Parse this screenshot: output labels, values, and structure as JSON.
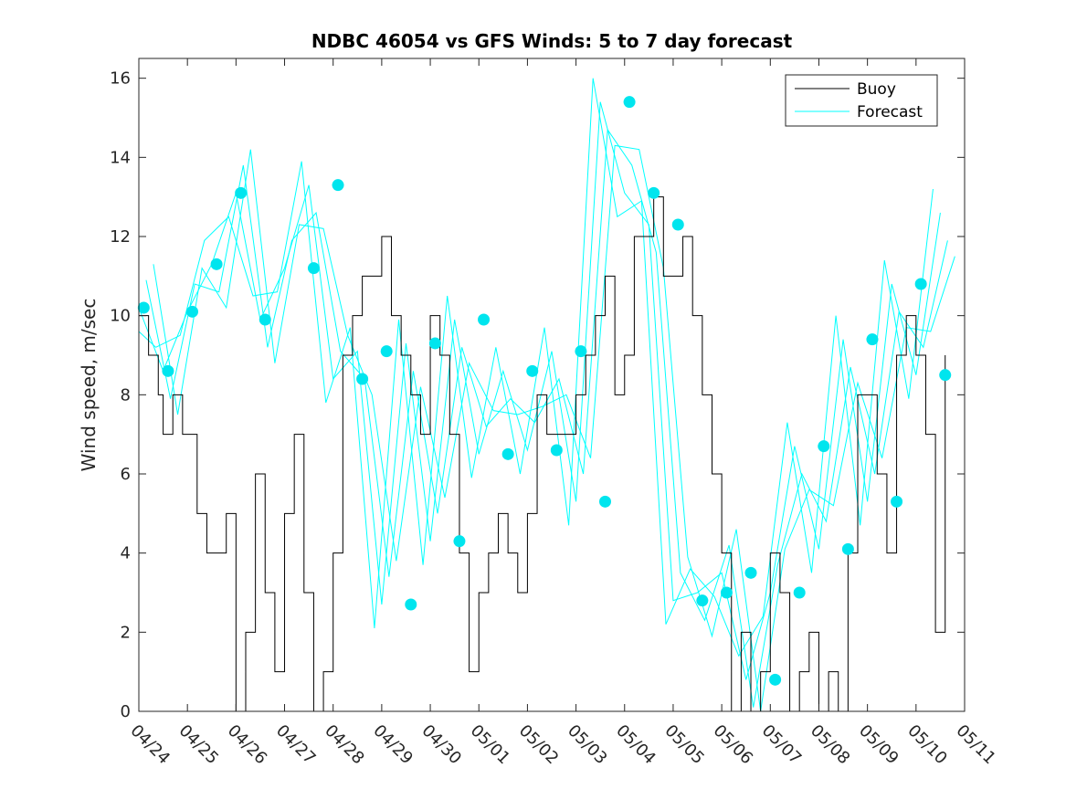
{
  "chart_data": {
    "type": "line",
    "title": "NDBC 46054 vs GFS Winds: 5 to 7 day forecast",
    "xlabel": "",
    "ylabel": "Wind speed, m/sec",
    "ylim": [
      0,
      16.5
    ],
    "yticks": [
      0,
      2,
      4,
      6,
      8,
      10,
      12,
      14,
      16
    ],
    "xlim": [
      "04/24",
      "05/11"
    ],
    "xticks": [
      "04/24",
      "04/25",
      "04/26",
      "04/27",
      "04/28",
      "04/29",
      "04/30",
      "05/01",
      "05/02",
      "05/03",
      "05/04",
      "05/05",
      "05/06",
      "05/07",
      "05/08",
      "05/09",
      "05/10",
      "05/11"
    ],
    "legend": {
      "placement": "top-right",
      "entries": [
        "Buoy",
        "Forecast"
      ]
    },
    "colors": {
      "buoy": "#000000",
      "forecast": "#00ffff",
      "markers": "#00e5ee"
    },
    "series": [
      {
        "name": "Buoy",
        "x_days": [
          0,
          0.1,
          0.2,
          0.3,
          0.4,
          0.5,
          0.6,
          0.7,
          0.8,
          0.9,
          1.0,
          1.2,
          1.4,
          1.6,
          1.8,
          2.0,
          2.2,
          2.4,
          2.6,
          2.8,
          3.0,
          3.2,
          3.4,
          3.6,
          3.8,
          4.0,
          4.2,
          4.4,
          4.5,
          4.6,
          4.8,
          5.0,
          5.2,
          5.4,
          5.6,
          5.8,
          6.0,
          6.2,
          6.4,
          6.6,
          6.8,
          7.0,
          7.2,
          7.4,
          7.6,
          7.8,
          8.0,
          8.2,
          8.4,
          8.6,
          8.8,
          9.0,
          9.2,
          9.4,
          9.6,
          9.8,
          10.0,
          10.2,
          10.4,
          10.6,
          10.8,
          11.0,
          11.2,
          11.4,
          11.6,
          11.8,
          12.0,
          12.2,
          12.4,
          12.6,
          12.8,
          13.0,
          13.2,
          13.4,
          13.6,
          13.8,
          14.0,
          14.2,
          14.4,
          14.6,
          14.8,
          15.0,
          15.2,
          15.4,
          15.6,
          15.8,
          16.0,
          16.2,
          16.4,
          16.6
        ],
        "values": [
          10,
          10,
          9,
          9,
          8,
          7,
          7,
          8,
          8,
          7,
          7,
          5,
          4,
          4,
          5,
          0,
          2,
          6,
          3,
          1,
          5,
          7,
          3,
          0,
          1,
          4,
          9,
          10,
          10,
          11,
          11,
          12,
          10,
          9,
          8,
          7,
          10,
          9,
          7,
          4,
          1,
          3,
          4,
          5,
          4,
          3,
          5,
          8,
          7,
          7,
          7,
          8,
          9,
          10,
          11,
          8,
          9,
          12,
          12,
          13,
          11,
          11,
          12,
          10,
          8,
          6,
          4,
          0,
          2,
          0,
          1,
          4,
          3,
          0,
          1,
          2,
          0,
          1,
          0,
          4,
          8,
          8,
          6,
          4,
          9,
          10,
          9,
          7,
          2,
          9
        ]
      },
      {
        "name": "Forecast",
        "x_days": [
          0,
          0.5,
          1.0,
          1.5,
          2.0,
          2.5,
          3.0,
          3.5,
          4.0,
          4.5,
          5.0,
          5.5,
          6.0,
          6.5,
          7.0,
          7.5,
          8.0,
          8.5,
          9.0,
          9.5,
          10.0,
          10.5,
          11.0,
          11.5,
          12.0,
          12.5,
          13.0,
          13.5,
          14.0,
          14.5,
          15.0,
          15.5,
          16.0,
          16.5
        ],
        "values": [
          10.2,
          8.6,
          10.1,
          11.3,
          13.1,
          9.9,
          11.2,
          13.3,
          8.4,
          9.1,
          2.7,
          9.3,
          4.3,
          9.9,
          6.5,
          8.6,
          6.6,
          9.1,
          5.3,
          15.4,
          13.1,
          12.3,
          2.8,
          3.0,
          3.5,
          0.8,
          3.0,
          6.7,
          4.1,
          9.4,
          5.3,
          10.8,
          8.5,
          12.6
        ]
      }
    ],
    "markers": {
      "x_days": [
        0.1,
        0.6,
        1.1,
        1.6,
        2.1,
        2.6,
        3.6,
        4.1,
        4.6,
        5.1,
        5.6,
        6.1,
        6.6,
        7.1,
        7.6,
        8.1,
        8.6,
        9.1,
        9.6,
        10.1,
        10.6,
        11.1,
        11.6,
        12.1,
        12.6,
        13.1,
        13.6,
        14.1,
        14.6,
        15.1,
        15.6,
        16.1,
        16.6
      ],
      "values": [
        10.2,
        8.6,
        10.1,
        11.3,
        13.1,
        9.9,
        11.2,
        13.3,
        8.4,
        9.1,
        2.7,
        9.3,
        4.3,
        9.9,
        6.5,
        8.6,
        6.6,
        9.1,
        5.3,
        15.4,
        13.1,
        12.3,
        2.8,
        3.0,
        3.5,
        0.8,
        3.0,
        6.7,
        4.1,
        9.4,
        5.3,
        10.8,
        8.5
      ]
    }
  }
}
